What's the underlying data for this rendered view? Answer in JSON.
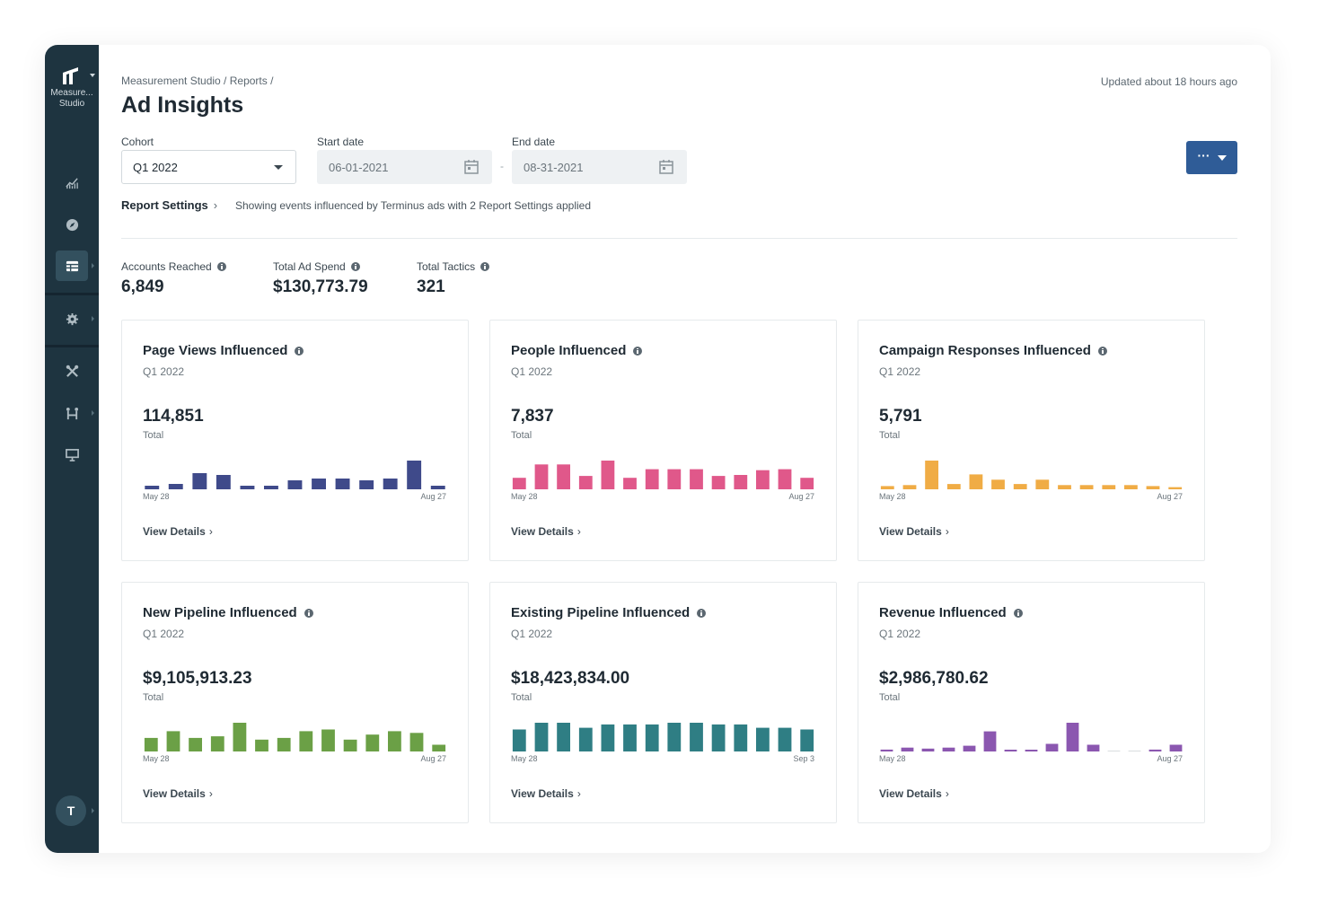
{
  "app": {
    "logo_label_1": "Measure...",
    "logo_label_2": "Studio",
    "user_initial": "T"
  },
  "sidebar": {
    "items": [
      {
        "icon": "analytics-icon"
      },
      {
        "icon": "compass-icon"
      },
      {
        "icon": "table-icon",
        "active": true
      },
      {
        "icon": "gear-icon"
      },
      {
        "icon": "tools-icon"
      },
      {
        "icon": "connections-icon"
      },
      {
        "icon": "presentation-icon"
      }
    ]
  },
  "header": {
    "breadcrumb": "Measurement Studio / Reports /",
    "title": "Ad Insights",
    "updated": "Updated about 18 hours ago"
  },
  "filters": {
    "cohort_label": "Cohort",
    "cohort_value": "Q1 2022",
    "start_label": "Start date",
    "start_value": "06-01-2021",
    "end_label": "End date",
    "end_value": "08-31-2021",
    "separator": "-",
    "more_button": "···"
  },
  "report": {
    "settings_label": "Report Settings",
    "settings_chevron": "›",
    "note": "Showing events influenced by Terminus ads with 2 Report Settings applied"
  },
  "kpis": [
    {
      "label": "Accounts Reached",
      "value": "6,849"
    },
    {
      "label": "Total Ad Spend",
      "value": "$130,773.79"
    },
    {
      "label": "Total Tactics",
      "value": "321"
    }
  ],
  "colors": {
    "sidebar": "#1e3440",
    "accent_button": "#2f5c97"
  },
  "cards": [
    {
      "title": "Page Views Influenced",
      "sub": "Q1 2022",
      "value": "114,851",
      "total_label": "Total",
      "start": "May 28",
      "end": "Aug 27",
      "view": "View Details",
      "color": "#3f4a8a",
      "chart_data": {
        "type": "bar",
        "values": [
          2,
          3,
          9,
          8,
          2,
          2,
          5,
          6,
          6,
          5,
          6,
          16,
          2
        ]
      }
    },
    {
      "title": "People Influenced",
      "sub": "Q1 2022",
      "value": "7,837",
      "total_label": "Total",
      "start": "May 28",
      "end": "Aug 27",
      "view": "View Details",
      "color": "#e0588a",
      "chart_data": {
        "type": "bar",
        "values": [
          12,
          26,
          26,
          14,
          30,
          12,
          21,
          21,
          21,
          14,
          15,
          20,
          21,
          12
        ]
      }
    },
    {
      "title": "Campaign Responses Influenced",
      "sub": "Q1 2022",
      "value": "5,791",
      "total_label": "Total",
      "start": "May 28",
      "end": "Aug 27",
      "view": "View Details",
      "color": "#f0ac45",
      "chart_data": {
        "type": "bar",
        "values": [
          3,
          4,
          27,
          5,
          14,
          9,
          5,
          9,
          4,
          4,
          4,
          4,
          3,
          2
        ]
      }
    },
    {
      "title": "New Pipeline Influenced",
      "sub": "Q1 2022",
      "value": "$9,105,913.23",
      "total_label": "Total",
      "start": "May 28",
      "end": "Aug 27",
      "view": "View Details",
      "color": "#6ba046",
      "chart_data": {
        "type": "bar",
        "values": [
          8,
          12,
          8,
          9,
          17,
          7,
          8,
          12,
          13,
          7,
          10,
          12,
          11,
          4
        ]
      }
    },
    {
      "title": "Existing Pipeline Influenced",
      "sub": "Q1 2022",
      "value": "$18,423,834.00",
      "total_label": "Total",
      "start": "May 28",
      "end": "Sep 3",
      "view": "View Details",
      "color": "#2f7e84",
      "chart_data": {
        "type": "bar",
        "values": [
          13,
          17,
          17,
          14,
          16,
          16,
          16,
          17,
          17,
          16,
          16,
          14,
          14,
          13
        ]
      }
    },
    {
      "title": "Revenue Influenced",
      "sub": "Q1 2022",
      "value": "$2,986,780.62",
      "total_label": "Total",
      "start": "May 28",
      "end": "Aug 27",
      "view": "View Details",
      "color": "#8b57b0",
      "chart_data": {
        "type": "bar",
        "values": [
          2,
          4,
          3,
          4,
          6,
          21,
          1,
          1,
          8,
          30,
          7,
          0,
          0,
          2,
          7
        ]
      }
    }
  ]
}
